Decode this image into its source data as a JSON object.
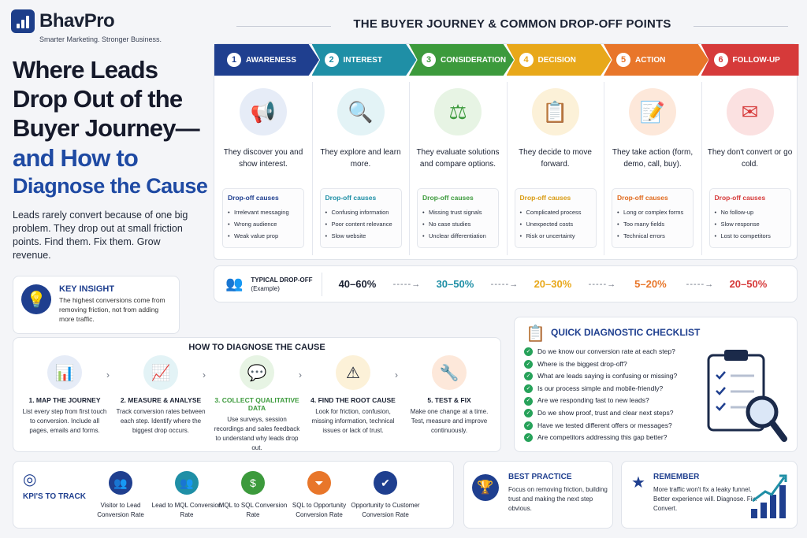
{
  "brand": {
    "name": "BhavPro",
    "tagline": "Smarter Marketing. Stronger Business."
  },
  "headline": {
    "line1": "Where Leads Drop Out of the Buyer Journey—",
    "line2": "and How to",
    "line3": "Diagnose the Cause"
  },
  "intro": "Leads rarely convert because of one big problem. They drop out at small friction points. Find them. Fix them. Grow revenue.",
  "key_insight": {
    "title": "KEY INSIGHT",
    "text": "The highest conversions come from removing friction, not from adding more traffic.",
    "icon": "lightbulb-icon"
  },
  "journey": {
    "title": "THE BUYER JOURNEY & COMMON DROP-OFF POINTS",
    "causes_label": "Drop-off causes",
    "stages": [
      {
        "num": "1",
        "name": "AWARENESS",
        "color": "#1f3f8f",
        "icon_bg": "#e6ecf7",
        "icon": "megaphone-icon",
        "glyph": "📢",
        "desc": "They discover you and show interest.",
        "causes": [
          "Irrelevant messaging",
          "Wrong audience",
          "Weak value prop"
        ],
        "causes_color": "#1f3f8f"
      },
      {
        "num": "2",
        "name": "INTEREST",
        "color": "#1f8fa6",
        "icon_bg": "#e3f3f6",
        "icon": "magnifier-icon",
        "glyph": "🔍",
        "desc": "They explore and learn more.",
        "causes": [
          "Confusing information",
          "Poor content relevance",
          "Slow website"
        ],
        "causes_color": "#1f8fa6"
      },
      {
        "num": "3",
        "name": "CONSIDERATION",
        "color": "#3c9a3c",
        "icon_bg": "#e7f4e4",
        "icon": "scales-icon",
        "glyph": "⚖",
        "desc": "They evaluate solutions and compare options.",
        "causes": [
          "Missing trust signals",
          "No case studies",
          "Unclear differentiation"
        ],
        "causes_color": "#3c9a3c"
      },
      {
        "num": "4",
        "name": "DECISION",
        "color": "#e8a81a",
        "icon_bg": "#fcf1d8",
        "icon": "clipboard-check-icon",
        "glyph": "📋",
        "desc": "They decide to move forward.",
        "causes": [
          "Complicated process",
          "Unexpected costs",
          "Risk or uncertainty"
        ],
        "causes_color": "#d99a10"
      },
      {
        "num": "5",
        "name": "ACTION",
        "color": "#e8762a",
        "icon_bg": "#fde8da",
        "icon": "form-pencil-icon",
        "glyph": "📝",
        "desc": "They take action (form, demo, call, buy).",
        "causes": [
          "Long or complex forms",
          "Too many fields",
          "Technical errors"
        ],
        "causes_color": "#e06a1e"
      },
      {
        "num": "6",
        "name": "FOLLOW-UP",
        "color": "#d63a3a",
        "icon_bg": "#fbe1e1",
        "icon": "envelope-icon",
        "glyph": "✉",
        "desc": "They don't convert or go cold.",
        "causes": [
          "No follow-up",
          "Slow response",
          "Lost to competitors"
        ],
        "causes_color": "#d63a3a"
      }
    ]
  },
  "dropoff": {
    "label": "TYPICAL DROP-OFF",
    "sub": "(Example)",
    "values": [
      {
        "v": "40–60%",
        "color": "#1b2233"
      },
      {
        "v": "30–50%",
        "color": "#1f8fa6"
      },
      {
        "v": "20–30%",
        "color": "#e8a81a"
      },
      {
        "v": "5–20%",
        "color": "#e8762a"
      },
      {
        "v": "20–50%",
        "color": "#d63a3a"
      }
    ]
  },
  "diagnose": {
    "title": "HOW TO DIAGNOSE THE CAUSE",
    "steps": [
      {
        "title": "1. MAP THE JOURNEY",
        "text": "List every step from first touch to conversion. Include all pages, emails and forms.",
        "icon": "bar-chart-icon",
        "glyph": "📊",
        "bg": "#e6ecf7",
        "color": "#1b2233"
      },
      {
        "title": "2. MEASURE & ANALYSE",
        "text": "Track conversion rates between each step. Identify where the biggest drop occurs.",
        "icon": "line-chart-icon",
        "glyph": "📈",
        "bg": "#e3f3f6",
        "color": "#1b2233"
      },
      {
        "title": "3. COLLECT QUALITATIVE DATA",
        "text": "Use surveys, session recordings and sales feedback to understand why leads drop out.",
        "icon": "chat-bubble-icon",
        "glyph": "💬",
        "bg": "#e7f4e4",
        "color": "#3c9a3c"
      },
      {
        "title": "4. FIND THE ROOT CAUSE",
        "text": "Look for friction, confusion, missing information, technical issues or lack of trust.",
        "icon": "warning-icon",
        "glyph": "⚠",
        "bg": "#fcf1d8",
        "color": "#1b2233"
      },
      {
        "title": "5. TEST & FIX",
        "text": "Make one change at a time. Test, measure and improve continuously.",
        "icon": "wrench-icon",
        "glyph": "🔧",
        "bg": "#fde8da",
        "color": "#1b2233"
      }
    ]
  },
  "checklist": {
    "title": "QUICK DIAGNOSTIC CHECKLIST",
    "items": [
      "Do we know our conversion rate at each step?",
      "Where is the biggest drop-off?",
      "What are leads saying is confusing or missing?",
      "Is our process simple and mobile-friendly?",
      "Are we responding fast to new leads?",
      "Do we show proof, trust and clear next steps?",
      "Have we tested different offers or messages?",
      "Are competitors addressing this gap better?"
    ]
  },
  "kpis": {
    "title": "KPI'S TO TRACK",
    "items": [
      {
        "label": "Visitor to Lead Conversion Rate",
        "icon": "people-icon",
        "glyph": "👥",
        "bg": "#1f3f8f"
      },
      {
        "label": "Lead to MQL Conversion Rate",
        "icon": "group-icon",
        "glyph": "👥",
        "bg": "#1f8fa6"
      },
      {
        "label": "MQL to SQL Conversion Rate",
        "icon": "dollar-icon",
        "glyph": "$",
        "bg": "#3c9a3c"
      },
      {
        "label": "SQL to Opportunity Conversion Rate",
        "icon": "funnel-icon",
        "glyph": "⏷",
        "bg": "#e8762a"
      },
      {
        "label": "Opportunity to Customer Conversion Rate",
        "icon": "customer-check-icon",
        "glyph": "✔",
        "bg": "#1f3f8f"
      }
    ]
  },
  "best_practice": {
    "title": "BEST PRACTICE",
    "text": "Focus on removing friction, building trust and making the next step obvious."
  },
  "remember": {
    "title": "REMEMBER",
    "text": "More traffic won't fix a leaky funnel. Better experience will. Diagnose. Fix. Convert."
  }
}
